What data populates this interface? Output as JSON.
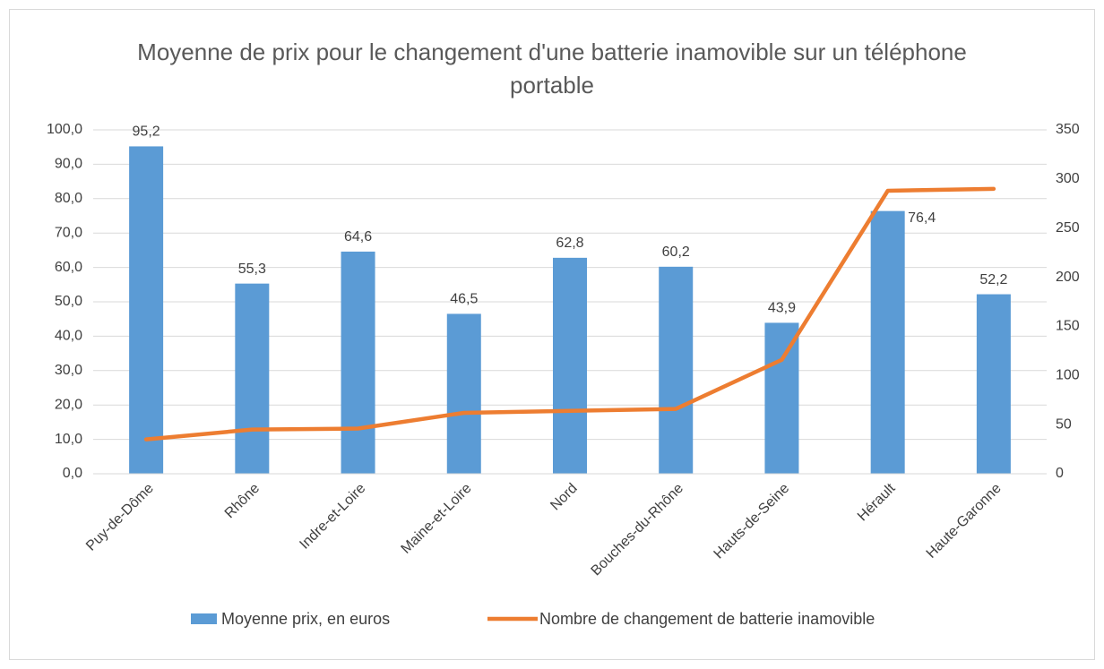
{
  "chart_data": {
    "type": "bar",
    "title": "Moyenne de prix pour le changement d'une batterie inamovible sur un téléphone portable",
    "categories": [
      "Puy-de-Dôme",
      "Rhône",
      "Indre-et-Loire",
      "Maine-et-Loire",
      "Nord",
      "Bouches-du-Rhône",
      "Hauts-de-Seine",
      "Hérault",
      "Haute-Garonne"
    ],
    "series": [
      {
        "name": "Moyenne prix, en euros",
        "color": "#5b9bd5",
        "type": "bar",
        "values": [
          95.2,
          55.3,
          64.6,
          46.5,
          62.8,
          60.2,
          43.9,
          76.4,
          52.2
        ],
        "value_labels": [
          "95,2",
          "55,3",
          "64,6",
          "46,5",
          "62,8",
          "60,2",
          "43,9",
          "76,4",
          "52,2"
        ]
      },
      {
        "name": "Nombre de changement de batterie inamovible",
        "color": "#ed7d31",
        "type": "line",
        "axis": "y2",
        "values": [
          35,
          45,
          46,
          62,
          64,
          66,
          116,
          288,
          290
        ]
      }
    ],
    "ylim": [
      0,
      100
    ],
    "yticks": [
      {
        "value": 0,
        "label": "0,0"
      },
      {
        "value": 10,
        "label": "10,0"
      },
      {
        "value": 20,
        "label": "20,0"
      },
      {
        "value": 30,
        "label": "30,0"
      },
      {
        "value": 40,
        "label": "40,0"
      },
      {
        "value": 50,
        "label": "50,0"
      },
      {
        "value": 60,
        "label": "60,0"
      },
      {
        "value": 70,
        "label": "70,0"
      },
      {
        "value": 80,
        "label": "80,0"
      },
      {
        "value": 90,
        "label": "90,0"
      },
      {
        "value": 100,
        "label": "100,0"
      }
    ],
    "y2lim": [
      0,
      350
    ],
    "y2ticks": [
      0,
      50,
      100,
      150,
      200,
      250,
      300,
      350
    ],
    "grid": true,
    "legend": "bottom"
  }
}
